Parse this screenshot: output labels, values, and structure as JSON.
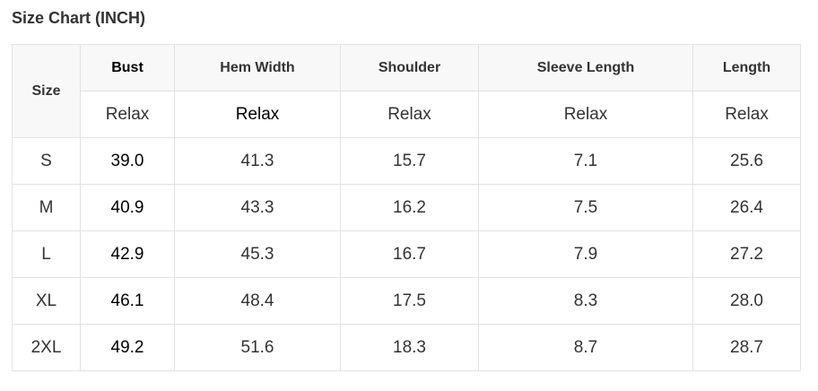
{
  "title": "Size Chart (INCH)",
  "table": {
    "size_header": "Size",
    "columns": [
      "Bust",
      "Hem Width",
      "Shoulder",
      "Sleeve Length",
      "Length"
    ],
    "fit": [
      "Relax",
      "Relax",
      "Relax",
      "Relax",
      "Relax"
    ],
    "rows": [
      {
        "size": "S",
        "values": [
          "39.0",
          "41.3",
          "15.7",
          "7.1",
          "25.6"
        ]
      },
      {
        "size": "M",
        "values": [
          "40.9",
          "43.3",
          "16.2",
          "7.5",
          "26.4"
        ]
      },
      {
        "size": "L",
        "values": [
          "42.9",
          "45.3",
          "16.7",
          "7.9",
          "27.2"
        ]
      },
      {
        "size": "XL",
        "values": [
          "46.1",
          "48.4",
          "17.5",
          "8.3",
          "28.0"
        ]
      },
      {
        "size": "2XL",
        "values": [
          "49.2",
          "51.6",
          "18.3",
          "8.7",
          "28.7"
        ]
      }
    ]
  }
}
